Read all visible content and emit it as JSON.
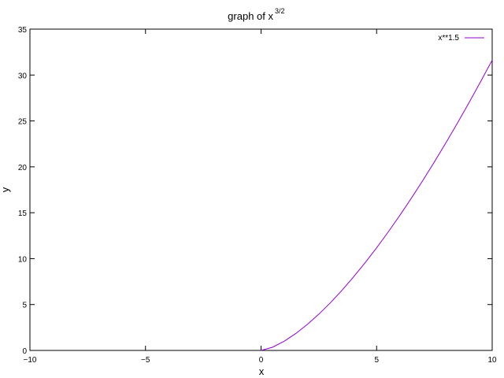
{
  "chart_data": {
    "type": "line",
    "title": "graph of x",
    "title_superscript": "3/2",
    "xlabel": "x",
    "ylabel": "y",
    "xlim": [
      -10,
      10
    ],
    "ylim": [
      0,
      35
    ],
    "xticks": [
      -10,
      -5,
      0,
      5,
      10
    ],
    "xtick_labels": [
      "−10",
      "−5",
      "0",
      "5",
      "10"
    ],
    "yticks": [
      0,
      5,
      10,
      15,
      20,
      25,
      30,
      35
    ],
    "ytick_labels": [
      "0",
      "5",
      "10",
      "15",
      "20",
      "25",
      "30",
      "35"
    ],
    "grid": false,
    "legend_position": "top-right",
    "series": [
      {
        "name": "x**1.5",
        "color": "#9400d3",
        "x": [
          0,
          0.5,
          1,
          1.5,
          2,
          2.5,
          3,
          3.5,
          4,
          4.5,
          5,
          5.5,
          6,
          6.5,
          7,
          7.5,
          8,
          8.5,
          9,
          9.5,
          10
        ],
        "y": [
          0,
          0.354,
          1,
          1.837,
          2.828,
          3.953,
          5.196,
          6.548,
          8,
          9.546,
          11.18,
          12.899,
          14.697,
          16.572,
          18.52,
          20.54,
          22.627,
          24.782,
          27,
          29.281,
          31.623
        ]
      }
    ]
  }
}
